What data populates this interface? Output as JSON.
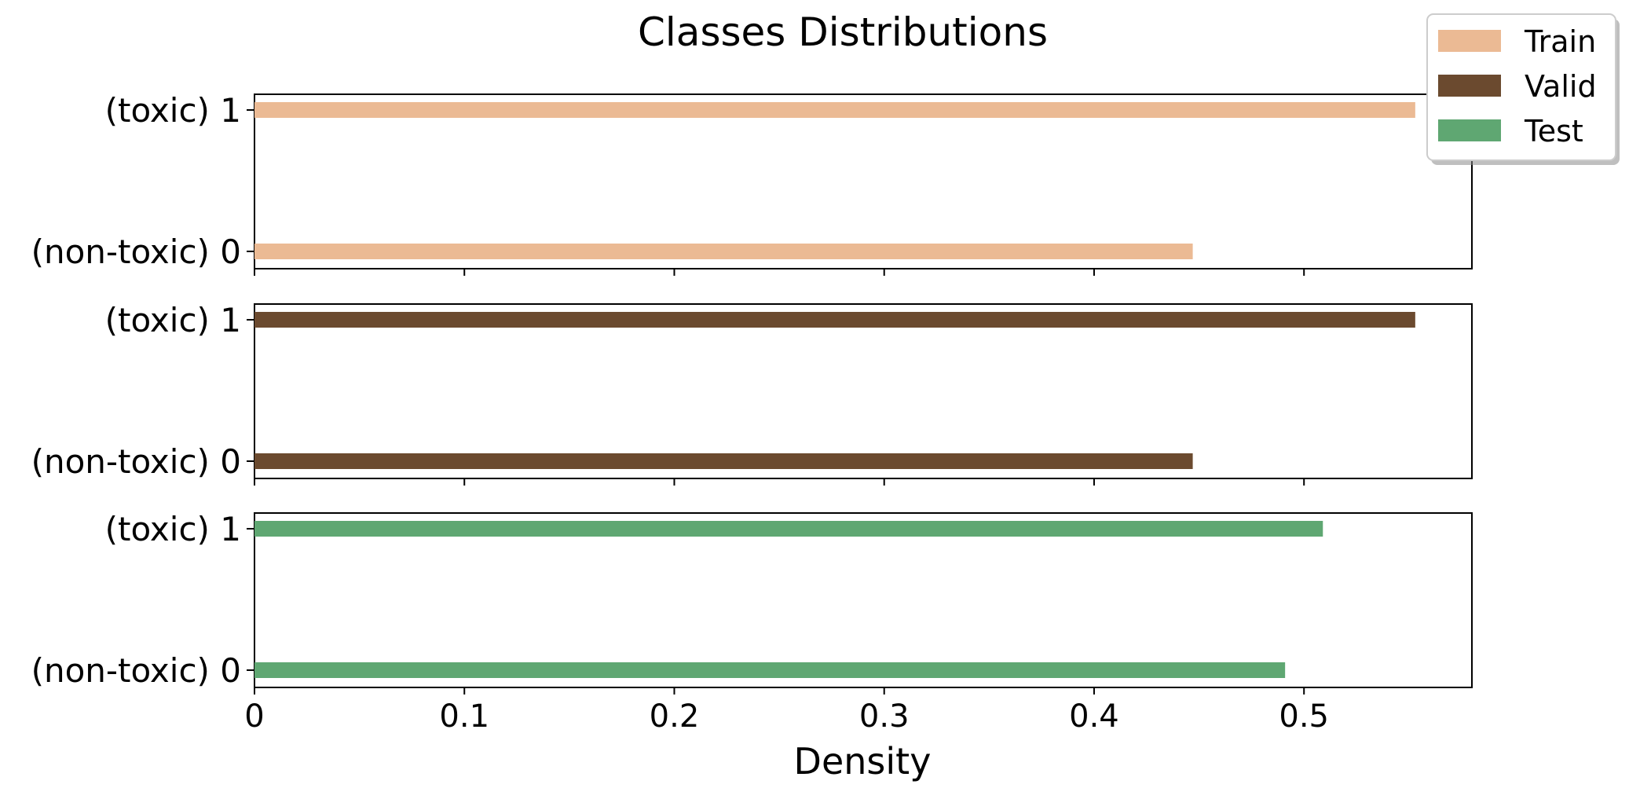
{
  "chart_data": {
    "type": "bar",
    "orientation": "horizontal",
    "title": "Classes Distributions",
    "xlabel": "Density",
    "ylabel": "",
    "xlim": [
      0,
      0.58
    ],
    "xticks": [
      0,
      0.1,
      0.2,
      0.3,
      0.4,
      0.5
    ],
    "xtick_labels": [
      "0",
      "0.1",
      "0.2",
      "0.3",
      "0.4",
      "0.5"
    ],
    "categories": [
      "(non-toxic) 0",
      "(toxic) 1"
    ],
    "legend_position": "top-right",
    "grid": false,
    "series": [
      {
        "name": "Train",
        "color": "#EBBA94",
        "values": [
          0.447,
          0.553
        ]
      },
      {
        "name": "Valid",
        "color": "#6B4A2F",
        "values": [
          0.447,
          0.553
        ]
      },
      {
        "name": "Test",
        "color": "#5FA772",
        "values": [
          0.491,
          0.509
        ]
      }
    ]
  }
}
